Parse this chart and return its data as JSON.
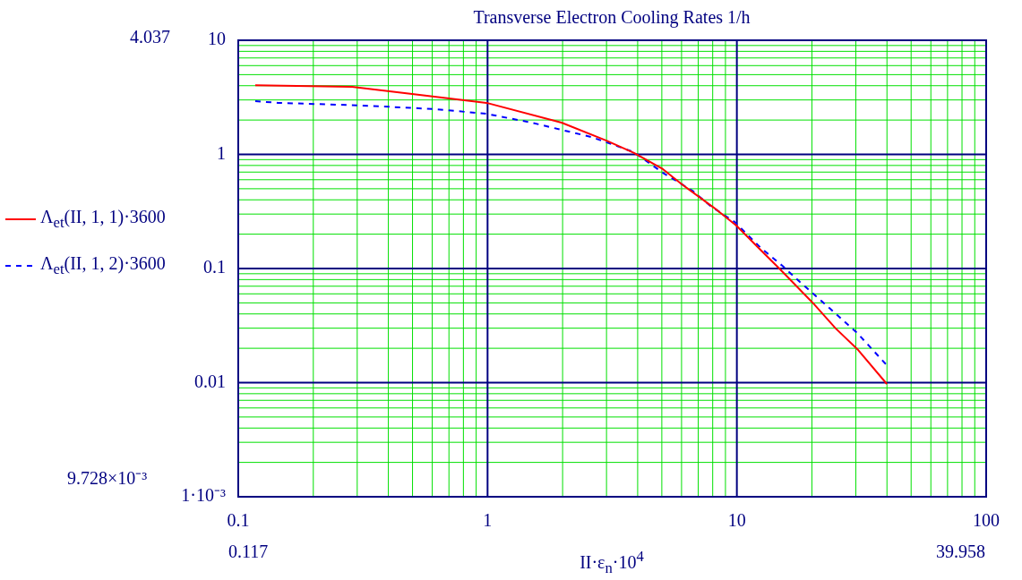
{
  "chart_data": {
    "type": "line",
    "title": "Transverse Electron Cooling Rates 1/h",
    "xlabel": "II·ε$_{n}$·10$^{4}$",
    "log": "xy",
    "grid": true,
    "legend": "left",
    "marker": "none",
    "xlim": [
      0.1,
      100
    ],
    "xticks": [
      0.1,
      {
        "value": 0.2,
        "label": null
      },
      {
        "value": 0.3,
        "label": null
      },
      {
        "value": 0.4,
        "label": null
      },
      {
        "value": 0.5,
        "label": null
      },
      {
        "value": 0.6,
        "label": null
      },
      {
        "value": 0.7,
        "label": null
      },
      {
        "value": 0.8,
        "label": null
      },
      {
        "value": 0.9,
        "label": null
      },
      1,
      {
        "value": 2,
        "label": null
      },
      {
        "value": 3,
        "label": null
      },
      {
        "value": 4,
        "label": null
      },
      {
        "value": 5,
        "label": null
      },
      {
        "value": 6,
        "label": null
      },
      {
        "value": 7,
        "label": null
      },
      {
        "value": 8,
        "label": null
      },
      {
        "value": 9,
        "label": null
      },
      10,
      {
        "value": 20,
        "label": null
      },
      {
        "value": 30,
        "label": null
      },
      {
        "value": 40,
        "label": null
      },
      {
        "value": 50,
        "label": null
      },
      {
        "value": 60,
        "label": null
      },
      {
        "value": 70,
        "label": null
      },
      {
        "value": 80,
        "label": null
      },
      {
        "value": 90,
        "label": null
      },
      100
    ],
    "ylim": [
      0.001,
      10
    ],
    "yticks": [
      {
        "value": 0.001,
        "label": "1·10⁻³"
      },
      {
        "value": 0.002,
        "label": null
      },
      {
        "value": 0.003,
        "label": null
      },
      {
        "value": 0.004,
        "label": null
      },
      {
        "value": 0.005,
        "label": null
      },
      {
        "value": 0.006,
        "label": null
      },
      {
        "value": 0.007,
        "label": null
      },
      {
        "value": 0.008,
        "label": null
      },
      {
        "value": 0.009,
        "label": null
      },
      0.01,
      {
        "value": 0.02,
        "label": null
      },
      {
        "value": 0.03,
        "label": null
      },
      {
        "value": 0.04,
        "label": null
      },
      {
        "value": 0.05,
        "label": null
      },
      {
        "value": 0.06,
        "label": null
      },
      {
        "value": 0.07,
        "label": null
      },
      {
        "value": 0.08,
        "label": null
      },
      {
        "value": 0.09,
        "label": null
      },
      0.1,
      {
        "value": 0.2,
        "label": null
      },
      {
        "value": 0.3,
        "label": null
      },
      {
        "value": 0.4,
        "label": null
      },
      {
        "value": 0.5,
        "label": null
      },
      {
        "value": 0.6,
        "label": null
      },
      {
        "value": 0.7,
        "label": null
      },
      {
        "value": 0.8,
        "label": null
      },
      {
        "value": 0.9,
        "label": null
      },
      1,
      {
        "value": 2,
        "label": null
      },
      {
        "value": 3,
        "label": null
      },
      {
        "value": 4,
        "label": null
      },
      {
        "value": 5,
        "label": null
      },
      {
        "value": 6,
        "label": null
      },
      {
        "value": 7,
        "label": null
      },
      {
        "value": 8,
        "label": null
      },
      {
        "value": 9,
        "label": null
      },
      10
    ],
    "annotations": [
      "4.037",
      "9.728×10⁻³",
      "0.117",
      "39.958"
    ],
    "series": [
      {
        "name": "Λ$_{et}$(II, 1, 1)·3600",
        "color": "#ff0000",
        "line_style": "solid",
        "x": [
          0.117,
          0.286,
          0.498,
          0.99,
          1.98,
          3.0,
          3.87,
          5.05,
          5.96,
          8.09,
          9.95,
          12.5,
          14.8,
          20.1,
          24.9,
          30.4,
          39.958
        ],
        "values": [
          4.037,
          3.91,
          3.38,
          2.83,
          1.9,
          1.32,
          1.03,
          0.743,
          0.556,
          0.341,
          0.238,
          0.144,
          0.1,
          0.0504,
          0.0299,
          0.0197,
          0.00973
        ]
      },
      {
        "name": "Λ$_{et}$(II, 1, 2)·3600",
        "color": "#0000ff",
        "line_style": "dashed",
        "x": [
          0.117,
          0.144,
          0.257,
          0.38,
          0.622,
          0.99,
          1.5,
          2.61,
          3.85,
          5.05,
          6.63,
          7.83,
          9.79,
          12.5,
          15.2,
          17.9,
          23.7,
          30.4,
          39.958
        ],
        "values": [
          2.93,
          2.83,
          2.72,
          2.63,
          2.49,
          2.27,
          1.9,
          1.42,
          1.05,
          0.69,
          0.481,
          0.354,
          0.256,
          0.151,
          0.106,
          0.0762,
          0.0444,
          0.0272,
          0.0142
        ]
      }
    ]
  }
}
